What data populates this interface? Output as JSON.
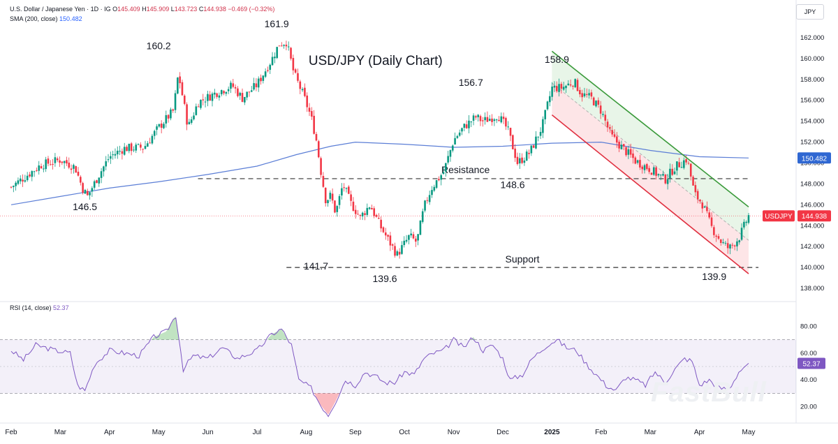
{
  "header": {
    "symbol": "U.S. Dollar / Japanese Yen · 1D · IG",
    "open_label": "O",
    "open": "145.409",
    "high_label": "H",
    "high": "145.909",
    "low_label": "L",
    "low": "143.723",
    "close_label": "C",
    "close": "144.938",
    "change": "−0.469 (−0.32%)",
    "sma_label": "SMA (200, close)",
    "sma_value": "150.482",
    "rsi_label": "RSI (14, close)",
    "rsi_value": "52.37",
    "unit": "JPY"
  },
  "watermark": "FastBull",
  "colors": {
    "up": "#089981",
    "down": "#f23645",
    "sma": "#5b7ed6",
    "rsi": "#7e57c2",
    "channel_top": "#3a9a3a",
    "channel_bottom": "#e03040",
    "sma_tag": "#2f67d2",
    "price_tag": "#f23645"
  },
  "chart_data": [
    {
      "type": "candlestick",
      "title": "USD/JPY (Daily Chart)",
      "x_months": [
        "Feb",
        "Mar",
        "Apr",
        "May",
        "Jun",
        "Jul",
        "Aug",
        "Sep",
        "Oct",
        "Nov",
        "Dec",
        "2025",
        "Feb",
        "Mar",
        "Apr",
        "May"
      ],
      "y_ticks": [
        138.0,
        140.0,
        142.0,
        144.0,
        146.0,
        148.0,
        150.0,
        152.0,
        154.0,
        156.0,
        158.0,
        160.0,
        162.0
      ],
      "y_tick_labels": [
        "138.000",
        "140.000",
        "142.000",
        "144.000",
        "146.000",
        "148.000",
        "150.000",
        "152.000",
        "154.000",
        "156.000",
        "158.000",
        "160.000",
        "162.000"
      ],
      "ylim": [
        137.0,
        163.6
      ],
      "price_path": [
        {
          "t": 0.0,
          "v": 147.7
        },
        {
          "t": 0.6,
          "v": 149.8
        },
        {
          "t": 1.0,
          "v": 150.3
        },
        {
          "t": 1.3,
          "v": 149.6
        },
        {
          "t": 1.45,
          "v": 147.6
        },
        {
          "t": 1.55,
          "v": 146.8
        },
        {
          "t": 1.8,
          "v": 149.0
        },
        {
          "t": 2.0,
          "v": 150.6
        },
        {
          "t": 2.3,
          "v": 151.4
        },
        {
          "t": 2.7,
          "v": 151.5
        },
        {
          "t": 3.0,
          "v": 153.4
        },
        {
          "t": 3.3,
          "v": 155.0
        },
        {
          "t": 3.4,
          "v": 158.6
        },
        {
          "t": 3.6,
          "v": 153.4
        },
        {
          "t": 3.8,
          "v": 155.8
        },
        {
          "t": 4.2,
          "v": 156.8
        },
        {
          "t": 4.5,
          "v": 157.4
        },
        {
          "t": 4.7,
          "v": 156.2
        },
        {
          "t": 5.0,
          "v": 157.5
        },
        {
          "t": 5.3,
          "v": 159.9
        },
        {
          "t": 5.45,
          "v": 161.4
        },
        {
          "t": 5.6,
          "v": 161.6
        },
        {
          "t": 5.75,
          "v": 158.6
        },
        {
          "t": 5.95,
          "v": 156.4
        },
        {
          "t": 6.1,
          "v": 154.4
        },
        {
          "t": 6.2,
          "v": 152.4
        },
        {
          "t": 6.3,
          "v": 149.2
        },
        {
          "t": 6.4,
          "v": 146.4
        },
        {
          "t": 6.5,
          "v": 146.9
        },
        {
          "t": 6.6,
          "v": 145.2
        },
        {
          "t": 6.75,
          "v": 148.0
        },
        {
          "t": 6.9,
          "v": 146.2
        },
        {
          "t": 7.1,
          "v": 144.8
        },
        {
          "t": 7.3,
          "v": 146.0
        },
        {
          "t": 7.5,
          "v": 144.0
        },
        {
          "t": 7.7,
          "v": 142.4
        },
        {
          "t": 7.85,
          "v": 141.2
        },
        {
          "t": 8.1,
          "v": 143.0
        },
        {
          "t": 8.25,
          "v": 142.4
        },
        {
          "t": 8.4,
          "v": 145.8
        },
        {
          "t": 8.55,
          "v": 147.6
        },
        {
          "t": 8.8,
          "v": 149.2
        },
        {
          "t": 9.0,
          "v": 152.2
        },
        {
          "t": 9.2,
          "v": 153.4
        },
        {
          "t": 9.45,
          "v": 154.4
        },
        {
          "t": 9.6,
          "v": 154.0
        },
        {
          "t": 9.9,
          "v": 154.6
        },
        {
          "t": 10.1,
          "v": 153.2
        },
        {
          "t": 10.3,
          "v": 150.0
        },
        {
          "t": 10.55,
          "v": 151.0
        },
        {
          "t": 10.8,
          "v": 153.5
        },
        {
          "t": 11.0,
          "v": 157.2
        },
        {
          "t": 11.2,
          "v": 157.2
        },
        {
          "t": 11.45,
          "v": 157.8
        },
        {
          "t": 11.6,
          "v": 156.6
        },
        {
          "t": 11.8,
          "v": 156.2
        },
        {
          "t": 12.0,
          "v": 155.0
        },
        {
          "t": 12.2,
          "v": 152.6
        },
        {
          "t": 12.4,
          "v": 151.6
        },
        {
          "t": 12.7,
          "v": 150.2
        },
        {
          "t": 13.0,
          "v": 149.4
        },
        {
          "t": 13.3,
          "v": 148.4
        },
        {
          "t": 13.5,
          "v": 149.6
        },
        {
          "t": 13.75,
          "v": 150.4
        },
        {
          "t": 13.9,
          "v": 147.0
        },
        {
          "t": 14.05,
          "v": 146.2
        },
        {
          "t": 14.25,
          "v": 143.8
        },
        {
          "t": 14.45,
          "v": 142.4
        },
        {
          "t": 14.6,
          "v": 141.8
        },
        {
          "t": 14.8,
          "v": 142.8
        },
        {
          "t": 15.0,
          "v": 144.94
        }
      ],
      "sma_200": [
        {
          "t": 0.0,
          "v": 146.0
        },
        {
          "t": 1.0,
          "v": 146.8
        },
        {
          "t": 2.0,
          "v": 147.6
        },
        {
          "t": 3.0,
          "v": 148.2
        },
        {
          "t": 4.0,
          "v": 148.9
        },
        {
          "t": 5.0,
          "v": 149.7
        },
        {
          "t": 5.8,
          "v": 150.8
        },
        {
          "t": 6.5,
          "v": 151.6
        },
        {
          "t": 7.0,
          "v": 152.0
        },
        {
          "t": 8.0,
          "v": 151.8
        },
        {
          "t": 9.0,
          "v": 151.5
        },
        {
          "t": 10.0,
          "v": 151.6
        },
        {
          "t": 11.0,
          "v": 151.9
        },
        {
          "t": 12.0,
          "v": 152.0
        },
        {
          "t": 13.0,
          "v": 151.2
        },
        {
          "t": 14.0,
          "v": 150.6
        },
        {
          "t": 15.0,
          "v": 150.48
        }
      ],
      "resistance": {
        "label": "Resistance",
        "value": 148.5,
        "t_start": 3.8,
        "t_end": 15.0
      },
      "support": {
        "label": "Support",
        "value": 140.0,
        "t_start": 5.6,
        "t_end": 15.2
      },
      "channel": {
        "upper": [
          {
            "t": 11.0,
            "v": 160.7
          },
          {
            "t": 15.0,
            "v": 145.8
          }
        ],
        "lower": [
          {
            "t": 11.0,
            "v": 154.6
          },
          {
            "t": 15.0,
            "v": 139.4
          }
        ]
      },
      "annotations": [
        {
          "text": "161.9",
          "t": 5.4,
          "v": 163.0
        },
        {
          "text": "160.2",
          "t": 3.0,
          "v": 160.9
        },
        {
          "text": "146.5",
          "t": 1.5,
          "v": 145.5
        },
        {
          "text": "141.7",
          "t": 6.2,
          "v": 139.8
        },
        {
          "text": "139.6",
          "t": 7.6,
          "v": 138.6
        },
        {
          "text": "156.7",
          "t": 9.35,
          "v": 157.4
        },
        {
          "text": "148.6",
          "t": 10.2,
          "v": 147.6
        },
        {
          "text": "158.9",
          "t": 11.1,
          "v": 159.6
        },
        {
          "text": "139.9",
          "t": 14.3,
          "v": 138.8
        }
      ],
      "last_price_label": "USDJPY",
      "last_price": "144.938",
      "sma_tag_value": "150.482"
    },
    {
      "type": "line",
      "title": "RSI (14, close)",
      "y_ticks": [
        20.0,
        40.0,
        60.0,
        80.0
      ],
      "y_tick_labels": [
        "20.00",
        "40.00",
        "60.00",
        "80.00"
      ],
      "ylim": [
        12.0,
        88.0
      ],
      "band": [
        30,
        70
      ],
      "midline": 50,
      "series": [
        {
          "t": 0.0,
          "v": 62.0
        },
        {
          "t": 0.25,
          "v": 55.0
        },
        {
          "t": 0.5,
          "v": 66.0
        },
        {
          "t": 0.9,
          "v": 62.0
        },
        {
          "t": 1.2,
          "v": 60.0
        },
        {
          "t": 1.35,
          "v": 36.0
        },
        {
          "t": 1.5,
          "v": 32.0
        },
        {
          "t": 1.7,
          "v": 52.0
        },
        {
          "t": 2.0,
          "v": 62.0
        },
        {
          "t": 2.3,
          "v": 60.0
        },
        {
          "t": 2.6,
          "v": 58.0
        },
        {
          "t": 2.9,
          "v": 72.0
        },
        {
          "t": 3.15,
          "v": 76.0
        },
        {
          "t": 3.35,
          "v": 88.0
        },
        {
          "t": 3.5,
          "v": 48.0
        },
        {
          "t": 3.7,
          "v": 58.0
        },
        {
          "t": 4.0,
          "v": 56.0
        },
        {
          "t": 4.3,
          "v": 64.0
        },
        {
          "t": 4.6,
          "v": 56.0
        },
        {
          "t": 5.0,
          "v": 62.0
        },
        {
          "t": 5.3,
          "v": 74.0
        },
        {
          "t": 5.5,
          "v": 78.0
        },
        {
          "t": 5.7,
          "v": 66.0
        },
        {
          "t": 5.85,
          "v": 40.0
        },
        {
          "t": 6.1,
          "v": 34.0
        },
        {
          "t": 6.3,
          "v": 21.0
        },
        {
          "t": 6.45,
          "v": 14.0
        },
        {
          "t": 6.6,
          "v": 24.0
        },
        {
          "t": 6.8,
          "v": 40.0
        },
        {
          "t": 7.0,
          "v": 36.0
        },
        {
          "t": 7.2,
          "v": 46.0
        },
        {
          "t": 7.45,
          "v": 42.0
        },
        {
          "t": 7.6,
          "v": 38.0
        },
        {
          "t": 7.8,
          "v": 38.0
        },
        {
          "t": 8.0,
          "v": 46.0
        },
        {
          "t": 8.2,
          "v": 44.0
        },
        {
          "t": 8.4,
          "v": 56.0
        },
        {
          "t": 8.6,
          "v": 60.0
        },
        {
          "t": 8.8,
          "v": 62.0
        },
        {
          "t": 9.0,
          "v": 70.0
        },
        {
          "t": 9.2,
          "v": 64.0
        },
        {
          "t": 9.4,
          "v": 72.0
        },
        {
          "t": 9.6,
          "v": 62.0
        },
        {
          "t": 9.8,
          "v": 66.0
        },
        {
          "t": 10.0,
          "v": 56.0
        },
        {
          "t": 10.15,
          "v": 40.0
        },
        {
          "t": 10.4,
          "v": 44.0
        },
        {
          "t": 10.6,
          "v": 56.0
        },
        {
          "t": 10.9,
          "v": 66.0
        },
        {
          "t": 11.1,
          "v": 70.0
        },
        {
          "t": 11.3,
          "v": 64.0
        },
        {
          "t": 11.5,
          "v": 62.0
        },
        {
          "t": 11.7,
          "v": 52.0
        },
        {
          "t": 11.9,
          "v": 44.0
        },
        {
          "t": 12.1,
          "v": 36.0
        },
        {
          "t": 12.3,
          "v": 32.0
        },
        {
          "t": 12.5,
          "v": 42.0
        },
        {
          "t": 12.7,
          "v": 40.0
        },
        {
          "t": 12.9,
          "v": 36.0
        },
        {
          "t": 13.1,
          "v": 46.0
        },
        {
          "t": 13.3,
          "v": 38.0
        },
        {
          "t": 13.5,
          "v": 48.0
        },
        {
          "t": 13.7,
          "v": 56.0
        },
        {
          "t": 13.85,
          "v": 54.0
        },
        {
          "t": 14.0,
          "v": 36.0
        },
        {
          "t": 14.2,
          "v": 40.0
        },
        {
          "t": 14.4,
          "v": 34.0
        },
        {
          "t": 14.6,
          "v": 33.0
        },
        {
          "t": 14.8,
          "v": 46.0
        },
        {
          "t": 15.0,
          "v": 52.37
        }
      ],
      "value_tag": "52.37"
    }
  ]
}
